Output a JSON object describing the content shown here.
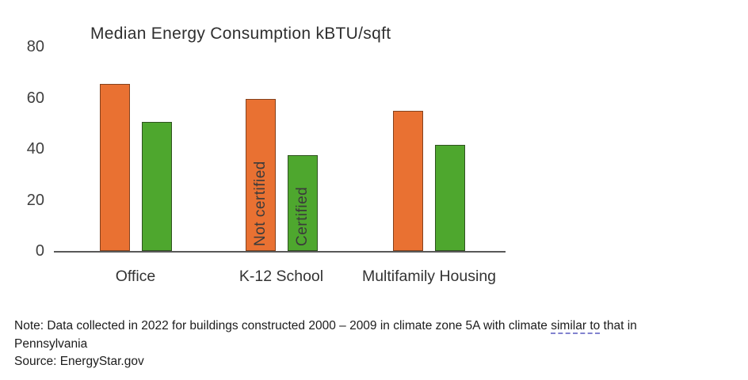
{
  "chart_data": {
    "type": "bar",
    "title": "Median Energy Consumption kBTU/sqft",
    "categories": [
      "Office",
      "K-12 School",
      "Multifamily Housing"
    ],
    "series": [
      {
        "name": "Not certified",
        "values": [
          65.5,
          59.5,
          55
        ],
        "color": "#E97132",
        "border_color": "#84421E"
      },
      {
        "name": "Certified",
        "values": [
          50.5,
          37.5,
          41.5
        ],
        "color": "#4EA72E",
        "border_color": "#2F5220"
      }
    ],
    "ylim": [
      0,
      80
    ],
    "yticks": [
      0,
      20,
      40,
      60,
      80
    ],
    "grid": false,
    "xlabel": "",
    "ylabel": "",
    "legend_position": "series-labels-rotated-inside-middle-group-bars"
  },
  "footnote": {
    "note_prefix": "Note: Data collected in 2022 for buildings constructed 2000 – 2009 in climate zone 5A with climate ",
    "note_underlined": "similar to",
    "note_suffix": " that in",
    "note_line2": "Pennsylvania",
    "source": "Source: EnergyStar.gov"
  },
  "colors": {
    "background": "#FFFFFF",
    "title_text": "#2F2F2F",
    "axis_text": "#404040",
    "axis_line": "#595959",
    "bar_label_text": "#3B3B3B",
    "grammar_underline": "#8283CF"
  }
}
